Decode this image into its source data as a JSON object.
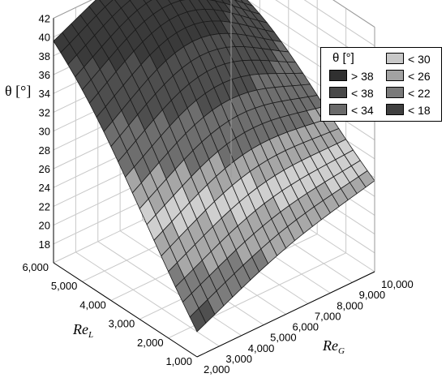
{
  "chart_data": {
    "type": "surface3d",
    "title": "",
    "zlabel": "θ [°]",
    "xlabel": "Re",
    "xlabel_sub": "G",
    "ylabel": "Re",
    "ylabel_sub": "L",
    "xlim": [
      2000,
      10000
    ],
    "ylim": [
      1000,
      6000
    ],
    "zlim": [
      16,
      42
    ],
    "x_ticks": [
      "2,000",
      "3,000",
      "4,000",
      "5,000",
      "6,000",
      "7,000",
      "8,000",
      "9,000",
      "10,000"
    ],
    "y_ticks": [
      "1,000",
      "2,000",
      "3,000",
      "4,000",
      "5,000",
      "6,000"
    ],
    "z_ticks": [
      "18",
      "20",
      "22",
      "24",
      "26",
      "28",
      "30",
      "32",
      "34",
      "36",
      "38",
      "40",
      "42"
    ],
    "x_tick_values": [
      2000,
      3000,
      4000,
      5000,
      6000,
      7000,
      8000,
      9000,
      10000
    ],
    "y_tick_values": [
      1000,
      2000,
      3000,
      4000,
      5000,
      6000
    ],
    "z_tick_values": [
      18,
      20,
      22,
      24,
      26,
      28,
      30,
      32,
      34,
      36,
      38,
      40,
      42
    ],
    "surface_corners": [
      {
        "ReG": 2000,
        "ReL": 1000,
        "theta": 18
      },
      {
        "ReG": 2000,
        "ReL": 6000,
        "theta": 36
      },
      {
        "ReG": 10000,
        "ReL": 1000,
        "theta": 25
      },
      {
        "ReG": 10000,
        "ReL": 6000,
        "theta": 33
      }
    ],
    "surface_peak": {
      "ReG": 6000,
      "ReL": 5000,
      "theta": 41
    },
    "legend": {
      "title": "θ [°]",
      "placement": "top-right",
      "items": [
        {
          "label": "> 38",
          "color": "#303030"
        },
        {
          "label": "< 38",
          "color": "#484848"
        },
        {
          "label": "< 34",
          "color": "#6a6a6a"
        },
        {
          "label": "< 30",
          "color": "#c8c8c8"
        },
        {
          "label": "< 26",
          "color": "#a2a2a2"
        },
        {
          "label": "< 22",
          "color": "#7a7a7a"
        },
        {
          "label": "< 18",
          "color": "#404040"
        }
      ]
    },
    "grid": true
  }
}
